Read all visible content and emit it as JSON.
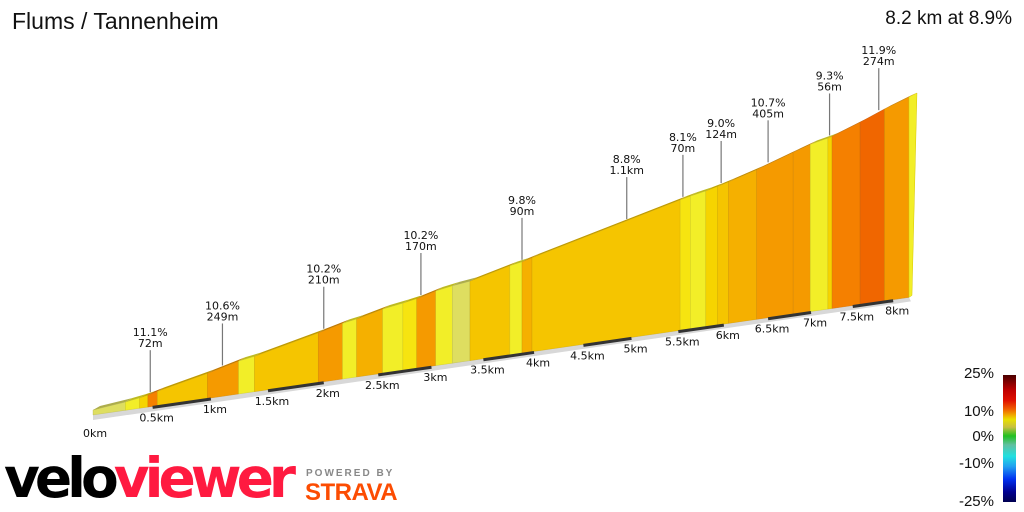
{
  "header": {
    "title": "Flums / Tannenheim",
    "summary": "8.2 km at 8.9%"
  },
  "chart_data": {
    "type": "area",
    "title": "Flums / Tannenheim",
    "xlabel": "",
    "ylabel": "",
    "x_unit": "km",
    "xlim": [
      0,
      8.2
    ],
    "x_ticks": [
      "0km",
      "0.5km",
      "1km",
      "1.5km",
      "2km",
      "2.5km",
      "3km",
      "3.5km",
      "4km",
      "4.5km",
      "5km",
      "5.5km",
      "6km",
      "6.5km",
      "7km",
      "7.5km",
      "8km"
    ],
    "segments": [
      {
        "start": 0,
        "end": 0.27,
        "gradient": 4.5
      },
      {
        "start": 0.27,
        "end": 0.39,
        "gradient": 6.5
      },
      {
        "start": 0.39,
        "end": 0.46,
        "gradient": 8.5
      },
      {
        "start": 0.46,
        "end": 0.54,
        "gradient": 11.1
      },
      {
        "start": 0.54,
        "end": 0.97,
        "gradient": 9.3
      },
      {
        "start": 0.97,
        "end": 1.24,
        "gradient": 10.6
      },
      {
        "start": 1.24,
        "end": 1.38,
        "gradient": 6.5
      },
      {
        "start": 1.38,
        "end": 1.95,
        "gradient": 9.3
      },
      {
        "start": 1.95,
        "end": 2.17,
        "gradient": 10.2
      },
      {
        "start": 2.17,
        "end": 2.3,
        "gradient": 6.5
      },
      {
        "start": 2.3,
        "end": 2.54,
        "gradient": 9.5
      },
      {
        "start": 2.54,
        "end": 2.73,
        "gradient": 6
      },
      {
        "start": 2.73,
        "end": 2.86,
        "gradient": 7
      },
      {
        "start": 2.86,
        "end": 3.04,
        "gradient": 10.2
      },
      {
        "start": 3.04,
        "end": 3.2,
        "gradient": 6.5
      },
      {
        "start": 3.2,
        "end": 3.37,
        "gradient": 4.5
      },
      {
        "start": 3.37,
        "end": 3.76,
        "gradient": 9.3
      },
      {
        "start": 3.76,
        "end": 3.88,
        "gradient": 6.5
      },
      {
        "start": 3.88,
        "end": 3.98,
        "gradient": 9.8
      },
      {
        "start": 3.98,
        "end": 5.52,
        "gradient": 8.8
      },
      {
        "start": 5.52,
        "end": 5.63,
        "gradient": 7.5
      },
      {
        "start": 5.63,
        "end": 5.8,
        "gradient": 6.5
      },
      {
        "start": 5.8,
        "end": 5.93,
        "gradient": 8
      },
      {
        "start": 5.93,
        "end": 6.05,
        "gradient": 9
      },
      {
        "start": 6.05,
        "end": 6.37,
        "gradient": 9.5
      },
      {
        "start": 6.37,
        "end": 6.79,
        "gradient": 10.7
      },
      {
        "start": 6.79,
        "end": 6.99,
        "gradient": 10.2
      },
      {
        "start": 6.99,
        "end": 7.2,
        "gradient": 6.5
      },
      {
        "start": 7.2,
        "end": 7.25,
        "gradient": 8.5
      },
      {
        "start": 7.25,
        "end": 7.59,
        "gradient": 11
      },
      {
        "start": 7.59,
        "end": 7.89,
        "gradient": 12
      },
      {
        "start": 7.89,
        "end": 8.2,
        "gradient": 10.2
      }
    ],
    "annotations": [
      {
        "km": 0.48,
        "gradient": "11.1%",
        "length": "72m"
      },
      {
        "km": 1.1,
        "gradient": "10.6%",
        "length": "249m"
      },
      {
        "km": 2.0,
        "gradient": "10.2%",
        "length": "210m"
      },
      {
        "km": 2.9,
        "gradient": "10.2%",
        "length": "170m"
      },
      {
        "km": 3.88,
        "gradient": "9.8%",
        "length": "90m"
      },
      {
        "km": 4.95,
        "gradient": "8.8%",
        "length": "1.1km"
      },
      {
        "km": 5.55,
        "gradient": "8.1%",
        "length": "70m"
      },
      {
        "km": 5.97,
        "gradient": "9.0%",
        "length": "124m"
      },
      {
        "km": 6.5,
        "gradient": "10.7%",
        "length": "405m"
      },
      {
        "km": 7.22,
        "gradient": "9.3%",
        "length": "56m"
      },
      {
        "km": 7.82,
        "gradient": "11.9%",
        "length": "274m"
      }
    ],
    "legend": {
      "placement": "bottom-right",
      "labels": [
        "25%",
        "10%",
        "0%",
        "-10%",
        "-25%"
      ]
    },
    "grid": false
  },
  "brand": {
    "velo": "velo",
    "viewer": "viewer",
    "powered_by": "POWERED BY",
    "strava": "STRAVA"
  },
  "colors": {
    "strava": "#fc4c02",
    "veloviewer_red": "#ff1a40"
  }
}
